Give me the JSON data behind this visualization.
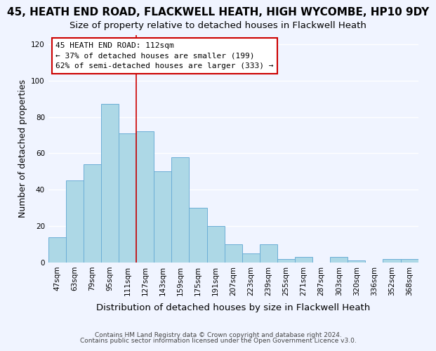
{
  "title": "45, HEATH END ROAD, FLACKWELL HEATH, HIGH WYCOMBE, HP10 9DY",
  "subtitle": "Size of property relative to detached houses in Flackwell Heath",
  "xlabel": "Distribution of detached houses by size in Flackwell Heath",
  "ylabel": "Number of detached properties",
  "bar_labels": [
    "47sqm",
    "63sqm",
    "79sqm",
    "95sqm",
    "111sqm",
    "127sqm",
    "143sqm",
    "159sqm",
    "175sqm",
    "191sqm",
    "207sqm",
    "223sqm",
    "239sqm",
    "255sqm",
    "271sqm",
    "287sqm",
    "303sqm",
    "320sqm",
    "336sqm",
    "352sqm",
    "368sqm"
  ],
  "bar_values": [
    14,
    45,
    54,
    87,
    71,
    72,
    50,
    58,
    30,
    20,
    10,
    5,
    10,
    2,
    3,
    0,
    3,
    1,
    0,
    2,
    2
  ],
  "bar_color": "#add8e6",
  "bar_edge_color": "#6baed6",
  "annotation_title": "45 HEATH END ROAD: 112sqm",
  "annotation_line1": "← 37% of detached houses are smaller (199)",
  "annotation_line2": "62% of semi-detached houses are larger (333) →",
  "annotation_box_color": "#ffffff",
  "annotation_box_edge": "#cc0000",
  "vline_x": 4.5,
  "ylim": [
    0,
    125
  ],
  "xlim": [
    -0.5,
    20.5
  ],
  "footnote1": "Contains HM Land Registry data © Crown copyright and database right 2024.",
  "footnote2": "Contains public sector information licensed under the Open Government Licence v3.0.",
  "bg_color": "#f0f4ff",
  "grid_color": "#ffffff",
  "title_fontsize": 11,
  "subtitle_fontsize": 9.5,
  "tick_fontsize": 7.5,
  "ylabel_fontsize": 9,
  "xlabel_fontsize": 9.5,
  "yticks": [
    0,
    20,
    40,
    60,
    80,
    100,
    120
  ]
}
